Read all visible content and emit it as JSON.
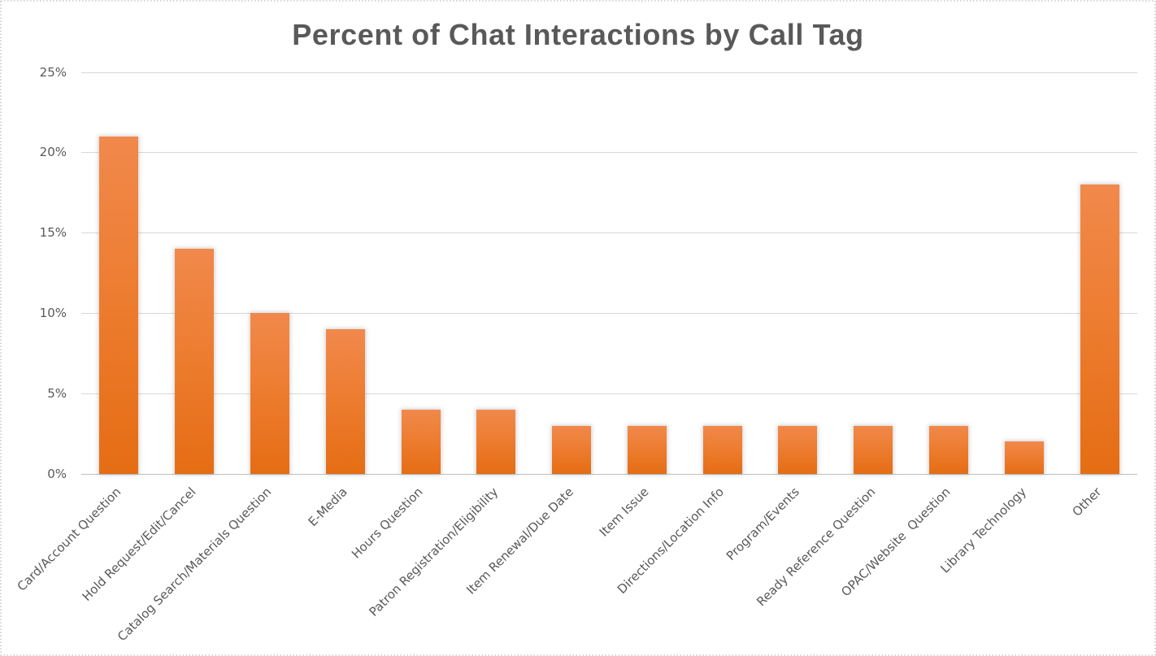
{
  "chart_data": {
    "type": "bar",
    "title": "Percent of Chat Interactions by Call Tag",
    "categories": [
      "Card/Account Question",
      "Hold Request/Edit/Cancel",
      "Catalog Search/Materials Question",
      "E-Media",
      "Hours Question",
      "Patron Registration/Eligibility",
      "Item Renewal/Due Date",
      "Item Issue",
      "Directions/Location Info",
      "Program/Events",
      "Ready Reference Question",
      "OPAC/Website  Question",
      "Library Technology",
      "Other"
    ],
    "values": [
      21,
      14,
      10,
      9,
      4,
      4,
      3,
      3,
      3,
      3,
      3,
      3,
      2,
      18
    ],
    "unit": "%",
    "xlabel": "",
    "ylabel": "",
    "ylim": [
      0,
      25
    ],
    "ytick_step": 5,
    "ytick_labels": [
      "0%",
      "5%",
      "10%",
      "15%",
      "20%",
      "25%"
    ],
    "grid": true,
    "legend": false,
    "bar_color_top": "#f1894c",
    "bar_color_bottom": "#e56d14",
    "title_color": "#595959",
    "label_color": "#595959",
    "gridline_color": "#d9d9d9",
    "axis_line_color": "#bfbfbf",
    "border_color": "#c8c8c8",
    "background_color": "#ffffff"
  }
}
